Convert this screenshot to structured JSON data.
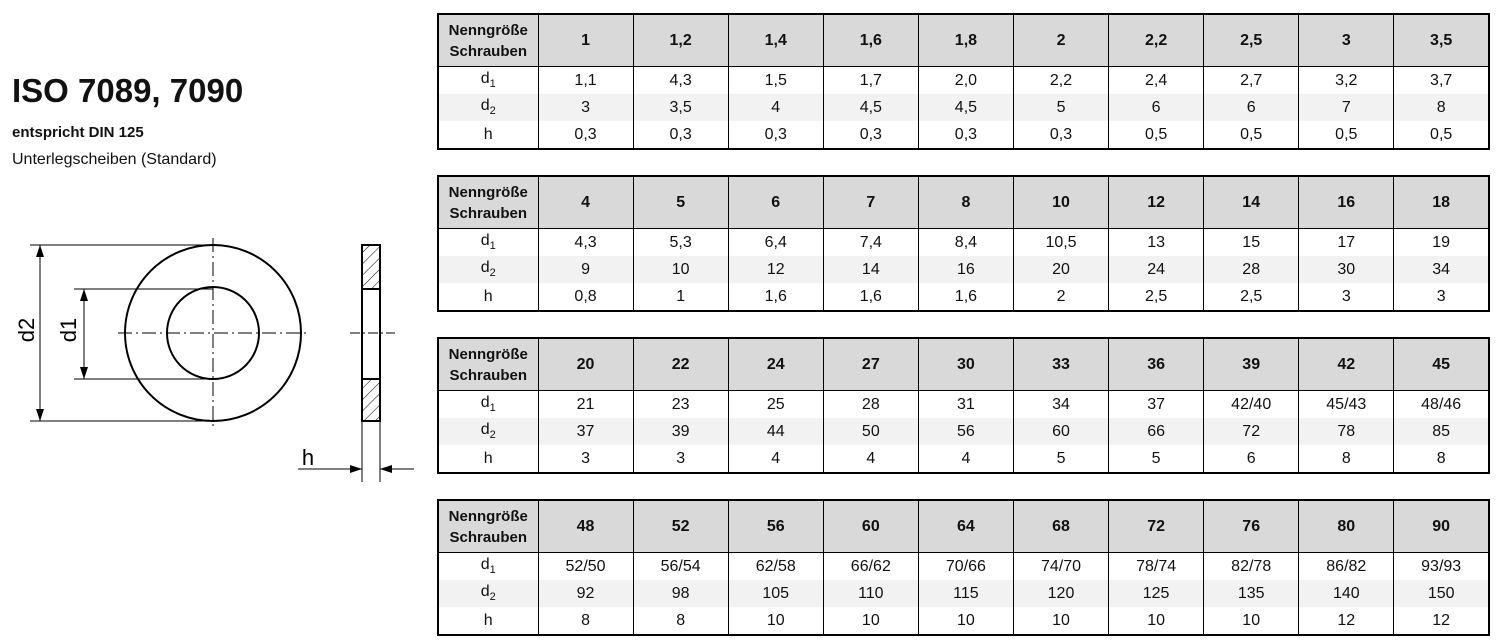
{
  "header": {
    "title": "ISO 7089, 7090",
    "standard": "entspricht DIN 125",
    "description": "Unterlegscheiben (Standard)"
  },
  "diagram": {
    "labels": [
      "d2",
      "d1",
      "h"
    ]
  },
  "tables": [
    {
      "corner": [
        "Nenngröße",
        "Schrauben"
      ],
      "sizes": [
        "1",
        "1,2",
        "1,4",
        "1,6",
        "1,8",
        "2",
        "2,2",
        "2,5",
        "3",
        "3,5"
      ],
      "rows": [
        {
          "label": "d",
          "sub": "1",
          "values": [
            "1,1",
            "4,3",
            "1,5",
            "1,7",
            "2,0",
            "2,2",
            "2,4",
            "2,7",
            "3,2",
            "3,7"
          ]
        },
        {
          "label": "d",
          "sub": "2",
          "values": [
            "3",
            "3,5",
            "4",
            "4,5",
            "4,5",
            "5",
            "6",
            "6",
            "7",
            "8"
          ]
        },
        {
          "label": "h",
          "values": [
            "0,3",
            "0,3",
            "0,3",
            "0,3",
            "0,3",
            "0,3",
            "0,5",
            "0,5",
            "0,5",
            "0,5"
          ]
        }
      ]
    },
    {
      "corner": [
        "Nenngröße",
        "Schrauben"
      ],
      "sizes": [
        "4",
        "5",
        "6",
        "7",
        "8",
        "10",
        "12",
        "14",
        "16",
        "18"
      ],
      "rows": [
        {
          "label": "d",
          "sub": "1",
          "values": [
            "4,3",
            "5,3",
            "6,4",
            "7,4",
            "8,4",
            "10,5",
            "13",
            "15",
            "17",
            "19"
          ]
        },
        {
          "label": "d",
          "sub": "2",
          "values": [
            "9",
            "10",
            "12",
            "14",
            "16",
            "20",
            "24",
            "28",
            "30",
            "34"
          ]
        },
        {
          "label": "h",
          "values": [
            "0,8",
            "1",
            "1,6",
            "1,6",
            "1,6",
            "2",
            "2,5",
            "2,5",
            "3",
            "3"
          ]
        }
      ]
    },
    {
      "corner": [
        "Nenngröße",
        "Schrauben"
      ],
      "sizes": [
        "20",
        "22",
        "24",
        "27",
        "30",
        "33",
        "36",
        "39",
        "42",
        "45"
      ],
      "rows": [
        {
          "label": "d",
          "sub": "1",
          "values": [
            "21",
            "23",
            "25",
            "28",
            "31",
            "34",
            "37",
            "42/40",
            "45/43",
            "48/46"
          ]
        },
        {
          "label": "d",
          "sub": "2",
          "values": [
            "37",
            "39",
            "44",
            "50",
            "56",
            "60",
            "66",
            "72",
            "78",
            "85"
          ]
        },
        {
          "label": "h",
          "values": [
            "3",
            "3",
            "4",
            "4",
            "4",
            "5",
            "5",
            "6",
            "8",
            "8"
          ]
        }
      ]
    },
    {
      "corner": [
        "Nenngröße",
        "Schrauben"
      ],
      "sizes": [
        "48",
        "52",
        "56",
        "60",
        "64",
        "68",
        "72",
        "76",
        "80",
        "90"
      ],
      "rows": [
        {
          "label": "d",
          "sub": "1",
          "values": [
            "52/50",
            "56/54",
            "62/58",
            "66/62",
            "70/66",
            "74/70",
            "78/74",
            "82/78",
            "86/82",
            "93/93"
          ]
        },
        {
          "label": "d",
          "sub": "2",
          "values": [
            "92",
            "98",
            "105",
            "110",
            "115",
            "120",
            "125",
            "135",
            "140",
            "150"
          ]
        },
        {
          "label": "h",
          "values": [
            "8",
            "8",
            "10",
            "10",
            "10",
            "10",
            "10",
            "10",
            "12",
            "12"
          ]
        }
      ]
    }
  ]
}
